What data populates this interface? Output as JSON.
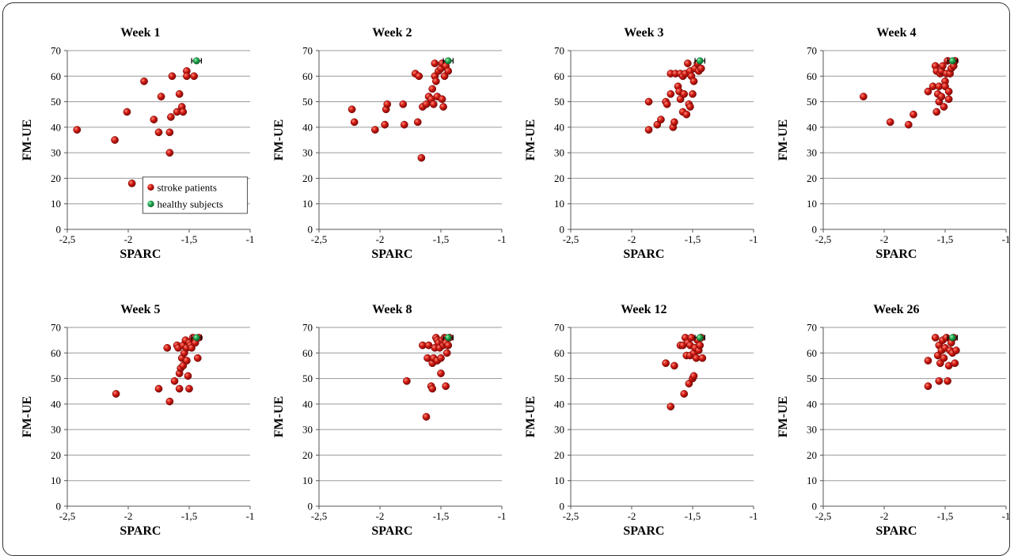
{
  "legend": [
    {
      "name": "stroke patients",
      "color": "#c0120f"
    },
    {
      "name": "healthy subjects",
      "color": "#1faa50"
    }
  ],
  "chart_data": [
    {
      "type": "scatter",
      "title": "Week 1",
      "xlabel": "SPARC",
      "ylabel": "FM-UE",
      "xlim": [
        -2.5,
        -1
      ],
      "ylim": [
        0,
        70
      ],
      "xticks": [
        "-2,5",
        "-2",
        "-1,5",
        "-1"
      ],
      "yticks": [
        "0",
        "10",
        "20",
        "30",
        "40",
        "50",
        "60",
        "70"
      ],
      "grid": "horizontal",
      "legend_position": "bottom-right",
      "series": [
        {
          "name": "stroke patients",
          "points": [
            [
              -2.42,
              39
            ],
            [
              -2.11,
              35
            ],
            [
              -1.97,
              18
            ],
            [
              -2.01,
              46
            ],
            [
              -1.87,
              58
            ],
            [
              -1.79,
              43
            ],
            [
              -1.75,
              38
            ],
            [
              -1.73,
              52
            ],
            [
              -1.66,
              30
            ],
            [
              -1.66,
              38
            ],
            [
              -1.65,
              44
            ],
            [
              -1.64,
              60
            ],
            [
              -1.6,
              46
            ],
            [
              -1.58,
              53
            ],
            [
              -1.56,
              48
            ],
            [
              -1.55,
              46
            ],
            [
              -1.52,
              62
            ],
            [
              -1.52,
              60
            ],
            [
              -1.46,
              60
            ]
          ]
        },
        {
          "name": "healthy subjects",
          "points": [
            [
              -1.44,
              66
            ]
          ],
          "xerr": 0.04
        }
      ]
    },
    {
      "type": "scatter",
      "title": "Week 2",
      "xlabel": "SPARC",
      "ylabel": "FM-UE",
      "xlim": [
        -2.5,
        -1
      ],
      "ylim": [
        0,
        70
      ],
      "xticks": [
        "-2,5",
        "-2",
        "-1,5",
        "-1"
      ],
      "yticks": [
        "0",
        "10",
        "20",
        "30",
        "40",
        "50",
        "60",
        "70"
      ],
      "grid": "horizontal",
      "series": [
        {
          "name": "stroke patients",
          "points": [
            [
              -2.23,
              47
            ],
            [
              -2.21,
              42
            ],
            [
              -2.04,
              39
            ],
            [
              -1.96,
              41
            ],
            [
              -1.95,
              47
            ],
            [
              -1.94,
              49
            ],
            [
              -1.81,
              49
            ],
            [
              -1.8,
              41
            ],
            [
              -1.69,
              42
            ],
            [
              -1.71,
              61
            ],
            [
              -1.68,
              60
            ],
            [
              -1.66,
              28
            ],
            [
              -1.65,
              48
            ],
            [
              -1.62,
              49
            ],
            [
              -1.6,
              52
            ],
            [
              -1.58,
              51
            ],
            [
              -1.57,
              55
            ],
            [
              -1.56,
              49
            ],
            [
              -1.55,
              65
            ],
            [
              -1.55,
              60
            ],
            [
              -1.54,
              58
            ],
            [
              -1.53,
              52
            ],
            [
              -1.52,
              62
            ],
            [
              -1.5,
              63
            ],
            [
              -1.49,
              65
            ],
            [
              -1.49,
              51
            ],
            [
              -1.48,
              48
            ],
            [
              -1.47,
              60
            ],
            [
              -1.46,
              64
            ],
            [
              -1.44,
              62
            ]
          ]
        },
        {
          "name": "healthy subjects",
          "points": [
            [
              -1.44,
              66
            ]
          ],
          "xerr": 0.04
        }
      ]
    },
    {
      "type": "scatter",
      "title": "Week 3",
      "xlabel": "SPARC",
      "ylabel": "FM-UE",
      "xlim": [
        -2.5,
        -1
      ],
      "ylim": [
        0,
        70
      ],
      "xticks": [
        "-2,5",
        "-2",
        "-1,5",
        "-1"
      ],
      "yticks": [
        "0",
        "10",
        "20",
        "30",
        "40",
        "50",
        "60",
        "70"
      ],
      "grid": "horizontal",
      "series": [
        {
          "name": "stroke patients",
          "points": [
            [
              -1.86,
              50
            ],
            [
              -1.86,
              39
            ],
            [
              -1.79,
              41
            ],
            [
              -1.76,
              43
            ],
            [
              -1.72,
              50
            ],
            [
              -1.71,
              49
            ],
            [
              -1.68,
              53
            ],
            [
              -1.68,
              61
            ],
            [
              -1.66,
              40
            ],
            [
              -1.65,
              42
            ],
            [
              -1.64,
              61
            ],
            [
              -1.62,
              56
            ],
            [
              -1.61,
              54
            ],
            [
              -1.6,
              51
            ],
            [
              -1.6,
              61
            ],
            [
              -1.58,
              60
            ],
            [
              -1.58,
              46
            ],
            [
              -1.57,
              53
            ],
            [
              -1.56,
              61
            ],
            [
              -1.55,
              45
            ],
            [
              -1.54,
              65
            ],
            [
              -1.53,
              49
            ],
            [
              -1.52,
              48
            ],
            [
              -1.52,
              62
            ],
            [
              -1.51,
              60
            ],
            [
              -1.5,
              53
            ],
            [
              -1.49,
              58
            ],
            [
              -1.48,
              63
            ],
            [
              -1.46,
              65
            ],
            [
              -1.45,
              62
            ],
            [
              -1.43,
              63
            ]
          ]
        },
        {
          "name": "healthy subjects",
          "points": [
            [
              -1.44,
              66
            ]
          ],
          "xerr": 0.04
        }
      ]
    },
    {
      "type": "scatter",
      "title": "Week 4",
      "xlabel": "SPARC",
      "ylabel": "FM-UE",
      "xlim": [
        -2.5,
        -1
      ],
      "ylim": [
        0,
        70
      ],
      "xticks": [
        "-2,5",
        "-2",
        "-1,5",
        "-1"
      ],
      "yticks": [
        "0",
        "10",
        "20",
        "30",
        "40",
        "50",
        "60",
        "70"
      ],
      "grid": "horizontal",
      "series": [
        {
          "name": "stroke patients",
          "points": [
            [
              -2.17,
              52
            ],
            [
              -1.95,
              42
            ],
            [
              -1.8,
              41
            ],
            [
              -1.76,
              45
            ],
            [
              -1.64,
              54
            ],
            [
              -1.6,
              56
            ],
            [
              -1.58,
              64
            ],
            [
              -1.57,
              62
            ],
            [
              -1.57,
              46
            ],
            [
              -1.56,
              53
            ],
            [
              -1.55,
              50
            ],
            [
              -1.55,
              56
            ],
            [
              -1.54,
              61
            ],
            [
              -1.53,
              52
            ],
            [
              -1.53,
              62
            ],
            [
              -1.52,
              64
            ],
            [
              -1.51,
              48
            ],
            [
              -1.5,
              58
            ],
            [
              -1.5,
              56
            ],
            [
              -1.49,
              61
            ],
            [
              -1.48,
              66
            ],
            [
              -1.47,
              51
            ],
            [
              -1.47,
              54
            ],
            [
              -1.46,
              61
            ],
            [
              -1.45,
              63
            ],
            [
              -1.43,
              64
            ],
            [
              -1.42,
              66
            ]
          ]
        },
        {
          "name": "healthy subjects",
          "points": [
            [
              -1.44,
              66
            ]
          ],
          "xerr": 0.04
        }
      ]
    },
    {
      "type": "scatter",
      "title": "Week 5",
      "xlabel": "SPARC",
      "ylabel": "FM-UE",
      "xlim": [
        -2.5,
        -1
      ],
      "ylim": [
        0,
        70
      ],
      "xticks": [
        "-2,5",
        "-2",
        "-1,5",
        "-1"
      ],
      "yticks": [
        "0",
        "10",
        "20",
        "30",
        "40",
        "50",
        "60",
        "70"
      ],
      "grid": "horizontal",
      "series": [
        {
          "name": "stroke patients",
          "points": [
            [
              -2.1,
              44
            ],
            [
              -1.75,
              46
            ],
            [
              -1.68,
              62
            ],
            [
              -1.66,
              41
            ],
            [
              -1.62,
              49
            ],
            [
              -1.6,
              63
            ],
            [
              -1.59,
              62
            ],
            [
              -1.58,
              52
            ],
            [
              -1.58,
              46
            ],
            [
              -1.57,
              54
            ],
            [
              -1.56,
              58
            ],
            [
              -1.55,
              63
            ],
            [
              -1.55,
              55
            ],
            [
              -1.54,
              60
            ],
            [
              -1.53,
              65
            ],
            [
              -1.52,
              62
            ],
            [
              -1.52,
              57
            ],
            [
              -1.51,
              51
            ],
            [
              -1.5,
              46
            ],
            [
              -1.5,
              64
            ],
            [
              -1.49,
              63
            ],
            [
              -1.48,
              62
            ],
            [
              -1.47,
              66
            ],
            [
              -1.45,
              64
            ],
            [
              -1.43,
              58
            ],
            [
              -1.42,
              66
            ]
          ]
        },
        {
          "name": "healthy subjects",
          "points": [
            [
              -1.44,
              66
            ]
          ],
          "xerr": 0.04
        }
      ]
    },
    {
      "type": "scatter",
      "title": "Week 8",
      "xlabel": "SPARC",
      "ylabel": "FM-UE",
      "xlim": [
        -2.5,
        -1
      ],
      "ylim": [
        0,
        70
      ],
      "xticks": [
        "-2,5",
        "-2",
        "-1,5",
        "-1"
      ],
      "yticks": [
        "0",
        "10",
        "20",
        "30",
        "40",
        "50",
        "60",
        "70"
      ],
      "grid": "horizontal",
      "series": [
        {
          "name": "stroke patients",
          "points": [
            [
              -1.78,
              49
            ],
            [
              -1.65,
              63
            ],
            [
              -1.62,
              35
            ],
            [
              -1.61,
              58
            ],
            [
              -1.6,
              63
            ],
            [
              -1.58,
              47
            ],
            [
              -1.57,
              46
            ],
            [
              -1.57,
              56
            ],
            [
              -1.56,
              58
            ],
            [
              -1.55,
              62
            ],
            [
              -1.54,
              66
            ],
            [
              -1.53,
              57
            ],
            [
              -1.53,
              65
            ],
            [
              -1.52,
              64
            ],
            [
              -1.51,
              62
            ],
            [
              -1.5,
              52
            ],
            [
              -1.5,
              58
            ],
            [
              -1.49,
              65
            ],
            [
              -1.48,
              63
            ],
            [
              -1.47,
              66
            ],
            [
              -1.46,
              47
            ],
            [
              -1.46,
              64
            ],
            [
              -1.45,
              60
            ],
            [
              -1.44,
              63
            ],
            [
              -1.43,
              66
            ]
          ]
        },
        {
          "name": "healthy subjects",
          "points": [
            [
              -1.44,
              66
            ]
          ],
          "xerr": 0.04
        }
      ]
    },
    {
      "type": "scatter",
      "title": "Week 12",
      "xlabel": "SPARC",
      "ylabel": "FM-UE",
      "xlim": [
        -2.5,
        -1
      ],
      "ylim": [
        0,
        70
      ],
      "xticks": [
        "-2,5",
        "-2",
        "-1,5",
        "-1"
      ],
      "yticks": [
        "0",
        "10",
        "20",
        "30",
        "40",
        "50",
        "60",
        "70"
      ],
      "grid": "horizontal",
      "series": [
        {
          "name": "stroke patients",
          "points": [
            [
              -1.72,
              56
            ],
            [
              -1.68,
              39
            ],
            [
              -1.65,
              55
            ],
            [
              -1.6,
              63
            ],
            [
              -1.58,
              63
            ],
            [
              -1.57,
              44
            ],
            [
              -1.56,
              66
            ],
            [
              -1.55,
              59
            ],
            [
              -1.54,
              64
            ],
            [
              -1.53,
              48
            ],
            [
              -1.52,
              59
            ],
            [
              -1.52,
              63
            ],
            [
              -1.51,
              66
            ],
            [
              -1.5,
              50
            ],
            [
              -1.49,
              51
            ],
            [
              -1.49,
              60
            ],
            [
              -1.48,
              62
            ],
            [
              -1.47,
              58
            ],
            [
              -1.46,
              65
            ],
            [
              -1.45,
              61
            ],
            [
              -1.44,
              63
            ],
            [
              -1.43,
              66
            ],
            [
              -1.42,
              58
            ]
          ]
        },
        {
          "name": "healthy subjects",
          "points": [
            [
              -1.44,
              66
            ]
          ],
          "xerr": 0.04
        }
      ]
    },
    {
      "type": "scatter",
      "title": "Week 26",
      "xlabel": "SPARC",
      "ylabel": "FM-UE",
      "xlim": [
        -2.5,
        -1
      ],
      "ylim": [
        0,
        70
      ],
      "xticks": [
        "-2,5",
        "-2",
        "-1,5",
        "-1"
      ],
      "yticks": [
        "0",
        "10",
        "20",
        "30",
        "40",
        "50",
        "60",
        "70"
      ],
      "grid": "horizontal",
      "series": [
        {
          "name": "stroke patients",
          "points": [
            [
              -1.64,
              47
            ],
            [
              -1.64,
              57
            ],
            [
              -1.58,
              66
            ],
            [
              -1.56,
              59
            ],
            [
              -1.55,
              49
            ],
            [
              -1.55,
              63
            ],
            [
              -1.54,
              56
            ],
            [
              -1.53,
              61
            ],
            [
              -1.52,
              65
            ],
            [
              -1.51,
              58
            ],
            [
              -1.5,
              62
            ],
            [
              -1.49,
              66
            ],
            [
              -1.48,
              49
            ],
            [
              -1.47,
              55
            ],
            [
              -1.46,
              61
            ],
            [
              -1.45,
              64
            ],
            [
              -1.44,
              60
            ],
            [
              -1.43,
              66
            ],
            [
              -1.42,
              56
            ],
            [
              -1.41,
              61
            ]
          ]
        },
        {
          "name": "healthy subjects",
          "points": [
            [
              -1.44,
              66
            ]
          ],
          "xerr": 0.04
        }
      ]
    }
  ]
}
